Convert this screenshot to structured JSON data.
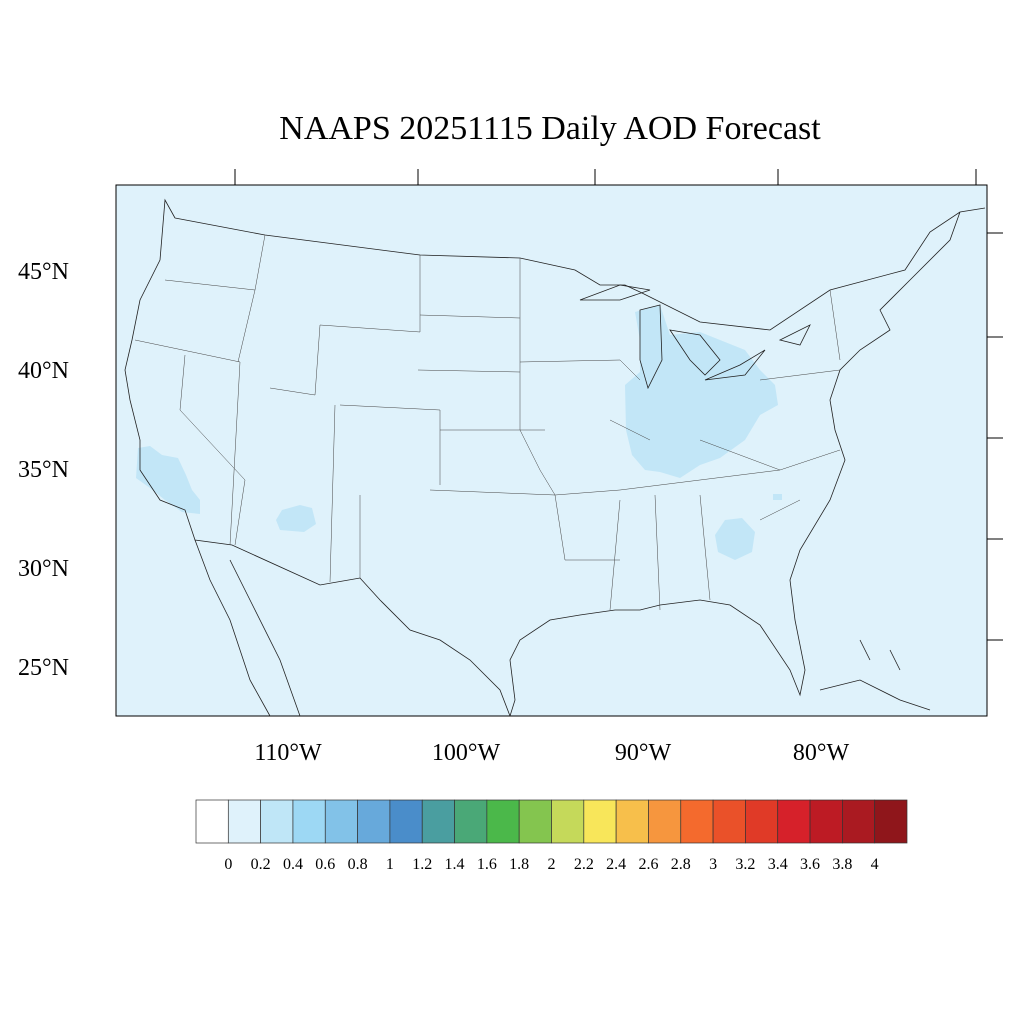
{
  "title": "NAAPS 20251115 Daily AOD Forecast",
  "lat_labels": [
    "45°N",
    "40°N",
    "35°N",
    "30°N",
    "25°N"
  ],
  "lon_labels": [
    "110°W",
    "100°W",
    "90°W",
    "80°W"
  ],
  "colors": {
    "ocean_land_background": "#dff2fb",
    "aod_0_2_to_0_4": "#c2e6f7",
    "border": "#333333"
  },
  "colorbar": {
    "labels": [
      "0",
      "0.2",
      "0.4",
      "0.6",
      "0.8",
      "1",
      "1.2",
      "1.4",
      "1.6",
      "1.8",
      "2",
      "2.2",
      "2.4",
      "2.6",
      "2.8",
      "3",
      "3.2",
      "3.4",
      "3.6",
      "3.8",
      "4"
    ],
    "colors": [
      "#ffffff",
      "#dff2fb",
      "#bfe6f7",
      "#9dd8f4",
      "#82c2e8",
      "#67a9db",
      "#4a8dca",
      "#4a9ea0",
      "#4aa877",
      "#4bb84a",
      "#84c54f",
      "#c5d95a",
      "#f8e65a",
      "#f7bf4b",
      "#f6963e",
      "#f46a2d",
      "#ea5129",
      "#e03a27",
      "#d6212a",
      "#bd1b24",
      "#aa1a21",
      "#8f161b"
    ]
  }
}
